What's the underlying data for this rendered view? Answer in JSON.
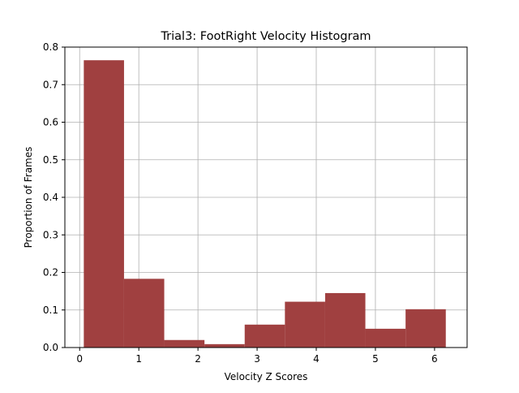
{
  "chart_data": {
    "type": "bar",
    "title": "Trial3: FootRight Velocity Histogram",
    "xlabel": "Velocity Z Scores",
    "ylabel": "Proportion of Frames",
    "xlim": [
      -0.25,
      6.55
    ],
    "ylim": [
      0,
      0.8
    ],
    "xticks": [
      0,
      1,
      2,
      3,
      4,
      5,
      6
    ],
    "yticks": [
      0.0,
      0.1,
      0.2,
      0.3,
      0.4,
      0.5,
      0.6,
      0.7,
      0.8
    ],
    "ytick_labels": [
      "0.0",
      "0.1",
      "0.2",
      "0.3",
      "0.4",
      "0.5",
      "0.6",
      "0.7",
      "0.8"
    ],
    "grid": true,
    "legend": false,
    "bar_color": "#a04040",
    "bins": [
      {
        "x0": 0.07,
        "x1": 0.75,
        "value": 0.765
      },
      {
        "x0": 0.75,
        "x1": 1.43,
        "value": 0.183
      },
      {
        "x0": 1.43,
        "x1": 2.11,
        "value": 0.02
      },
      {
        "x0": 2.11,
        "x1": 2.79,
        "value": 0.009
      },
      {
        "x0": 2.79,
        "x1": 3.47,
        "value": 0.061
      },
      {
        "x0": 3.47,
        "x1": 4.15,
        "value": 0.122
      },
      {
        "x0": 4.15,
        "x1": 4.83,
        "value": 0.145
      },
      {
        "x0": 4.83,
        "x1": 5.51,
        "value": 0.05
      },
      {
        "x0": 5.51,
        "x1": 6.19,
        "value": 0.102
      }
    ]
  }
}
